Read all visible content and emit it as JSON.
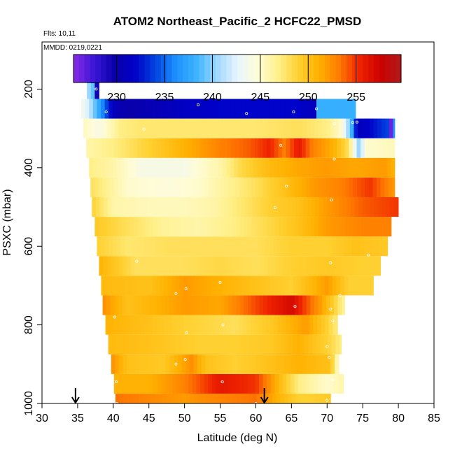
{
  "chart_data": {
    "type": "heatmap",
    "title": "ATOM2 Northeast_Pacific_2 HCFC22_PMSD",
    "flights_label": "Flts: 10,11",
    "dates_label": "MMDD: 0219,0221",
    "xlabel": "Latitude (deg N)",
    "ylabel": "PSXC (mbar)",
    "xlim": [
      30,
      85
    ],
    "ylim": [
      1000,
      80
    ],
    "y_reversed": true,
    "xticks": [
      "30",
      "35",
      "40",
      "45",
      "50",
      "55",
      "60",
      "65",
      "70",
      "75",
      "80",
      "85"
    ],
    "yticks": [
      "200",
      "400",
      "600",
      "800",
      "1000"
    ],
    "colorbar": {
      "min": 225.5,
      "max": 259.7,
      "ticks": [
        "230",
        "235",
        "240",
        "245",
        "250",
        "255"
      ],
      "colors": [
        "#8a2be2",
        "#3b16d8",
        "#0a00a8",
        "#0000c8",
        "#0044e0",
        "#1e90ff",
        "#3cb4ff",
        "#9fd8ff",
        "#e6f5ff",
        "#fffcd6",
        "#fff08a",
        "#ffd030",
        "#ffb000",
        "#ff7a00",
        "#ee2200",
        "#cc0000",
        "#b01a1a"
      ]
    },
    "arrows": [
      34.7,
      61.2
    ],
    "rows": [
      {
        "p": 1000,
        "x0": 40.3,
        "x1": 70.5,
        "stops": [
          [
            40.3,
            253.5
          ],
          [
            50,
            252
          ],
          [
            52,
            252.5
          ],
          [
            60,
            253.5
          ],
          [
            63,
            251
          ],
          [
            66,
            249
          ],
          [
            68,
            249
          ],
          [
            70.5,
            249.5
          ]
        ]
      },
      {
        "p": 950,
        "x0": 40.1,
        "x1": 72.3,
        "stops": [
          [
            40.1,
            251
          ],
          [
            45,
            251
          ],
          [
            50,
            253
          ],
          [
            55,
            256
          ],
          [
            60,
            255
          ],
          [
            63,
            251
          ],
          [
            66,
            247
          ],
          [
            70,
            245
          ],
          [
            72.3,
            246
          ]
        ]
      },
      {
        "p": 900,
        "x0": 39.7,
        "x1": 71.7,
        "stops": [
          [
            39.7,
            252.5
          ],
          [
            42,
            250
          ],
          [
            47,
            249.5
          ],
          [
            51,
            252.5
          ],
          [
            53,
            250
          ],
          [
            57,
            249
          ],
          [
            62,
            250
          ],
          [
            66,
            251
          ],
          [
            70.5,
            250
          ],
          [
            71.3,
            246
          ],
          [
            71.7,
            245
          ]
        ]
      },
      {
        "p": 850,
        "x0": 39.3,
        "x1": 72.0,
        "stops": [
          [
            39.3,
            250.5
          ],
          [
            45,
            250
          ],
          [
            52,
            249
          ],
          [
            57,
            249
          ],
          [
            62,
            249.5
          ],
          [
            66,
            251
          ],
          [
            70,
            249
          ],
          [
            72,
            247
          ]
        ]
      },
      {
        "p": 800,
        "x0": 38.9,
        "x1": 71.5,
        "stops": [
          [
            38.9,
            251
          ],
          [
            45,
            250
          ],
          [
            50,
            249
          ],
          [
            54,
            248.5
          ],
          [
            57,
            248
          ],
          [
            62,
            249.5
          ],
          [
            67,
            252
          ],
          [
            70,
            249
          ],
          [
            71.5,
            247
          ]
        ]
      },
      {
        "p": 750,
        "x0": 38.5,
        "x1": 72.5,
        "stops": [
          [
            38.5,
            252.5
          ],
          [
            42,
            250
          ],
          [
            50,
            252
          ],
          [
            55,
            251.5
          ],
          [
            60,
            254.5
          ],
          [
            65,
            257
          ],
          [
            69,
            252
          ],
          [
            71,
            249
          ],
          [
            72.5,
            246
          ]
        ]
      },
      {
        "p": 700,
        "x0": 38.3,
        "x1": 76.5,
        "stops": [
          [
            38.3,
            250.5
          ],
          [
            45,
            250
          ],
          [
            50,
            252
          ],
          [
            55,
            251
          ],
          [
            60,
            250
          ],
          [
            65,
            249
          ],
          [
            70,
            252
          ],
          [
            73,
            249
          ],
          [
            76.5,
            249
          ]
        ]
      },
      {
        "p": 650,
        "x0": 38.0,
        "x1": 77.5,
        "stops": [
          [
            38.0,
            251
          ],
          [
            43,
            248
          ],
          [
            50,
            248
          ],
          [
            55,
            248.5
          ],
          [
            60,
            248
          ],
          [
            65,
            249
          ],
          [
            70,
            249.5
          ],
          [
            75,
            249
          ],
          [
            77.5,
            249
          ]
        ]
      },
      {
        "p": 600,
        "x0": 37.7,
        "x1": 78.5,
        "stops": [
          [
            37.7,
            249
          ],
          [
            42,
            247.5
          ],
          [
            48,
            248
          ],
          [
            55,
            248
          ],
          [
            60,
            248
          ],
          [
            65,
            249
          ],
          [
            70,
            249
          ],
          [
            74,
            250
          ],
          [
            78.5,
            249.5
          ]
        ]
      },
      {
        "p": 550,
        "x0": 37.4,
        "x1": 79.0,
        "stops": [
          [
            37.4,
            249.5
          ],
          [
            42,
            248
          ],
          [
            47,
            246.5
          ],
          [
            52,
            246
          ],
          [
            57,
            247
          ],
          [
            62,
            248.5
          ],
          [
            66,
            250
          ],
          [
            70,
            252
          ],
          [
            75,
            253
          ],
          [
            79,
            253
          ]
        ]
      },
      {
        "p": 500,
        "x0": 37.0,
        "x1": 80.0,
        "stops": [
          [
            37.0,
            249
          ],
          [
            40,
            246
          ],
          [
            45,
            245.5
          ],
          [
            50,
            245.5
          ],
          [
            54,
            246
          ],
          [
            58,
            247.5
          ],
          [
            62,
            249
          ],
          [
            66,
            250
          ],
          [
            70,
            252
          ],
          [
            75,
            254
          ],
          [
            80,
            255
          ]
        ]
      },
      {
        "p": 450,
        "x0": 36.8,
        "x1": 79.5,
        "stops": [
          [
            36.8,
            248
          ],
          [
            42,
            245
          ],
          [
            48,
            244.5
          ],
          [
            52,
            245
          ],
          [
            56,
            246.5
          ],
          [
            60,
            248
          ],
          [
            64,
            250
          ],
          [
            68,
            252
          ],
          [
            72,
            253
          ],
          [
            76,
            255
          ],
          [
            79.5,
            252
          ]
        ]
      },
      {
        "p": 400,
        "x0": 36.6,
        "x1": 79.5,
        "stops": [
          [
            36.6,
            247
          ],
          [
            40,
            246
          ],
          [
            44,
            244
          ],
          [
            50,
            244
          ],
          [
            55,
            246
          ],
          [
            58,
            248.5
          ],
          [
            62,
            250.5
          ],
          [
            66,
            251.5
          ],
          [
            70,
            252
          ],
          [
            74,
            251.5
          ],
          [
            78,
            252
          ],
          [
            79.5,
            251
          ]
        ]
      },
      {
        "p": 350,
        "x0": 36.2,
        "x1": 79.5,
        "stops": [
          [
            36.2,
            246
          ],
          [
            40,
            247
          ],
          [
            45,
            249
          ],
          [
            50,
            251
          ],
          [
            55,
            253
          ],
          [
            59,
            254
          ],
          [
            62,
            255.5
          ],
          [
            64,
            253
          ],
          [
            66,
            256
          ],
          [
            68,
            253
          ],
          [
            71,
            251
          ],
          [
            73,
            248
          ],
          [
            74.5,
            240
          ],
          [
            75.5,
            245
          ],
          [
            79.5,
            245.5
          ]
        ]
      },
      {
        "p": 300,
        "x0": 35.8,
        "x1": 79.5,
        "stops": [
          [
            35.8,
            245.5
          ],
          [
            38,
            244
          ],
          [
            41,
            247
          ],
          [
            44,
            247.5
          ],
          [
            50,
            247.5
          ],
          [
            60,
            247.5
          ],
          [
            66,
            248
          ],
          [
            70,
            247
          ],
          [
            72,
            245
          ],
          [
            73.5,
            238
          ],
          [
            74.2,
            231
          ],
          [
            76,
            232
          ],
          [
            78.5,
            234
          ],
          [
            79,
            226
          ],
          [
            79.5,
            240
          ]
        ]
      },
      {
        "p": 250,
        "x0": 35.5,
        "x1": 74.0,
        "stops": [
          [
            35.5,
            244
          ],
          [
            36.5,
            242
          ],
          [
            38.5,
            236
          ],
          [
            40,
            231
          ],
          [
            42,
            230
          ],
          [
            50,
            231.5
          ],
          [
            55,
            232
          ],
          [
            60,
            232
          ],
          [
            66,
            232
          ],
          [
            68.2,
            231
          ],
          [
            68.7,
            238
          ],
          [
            74,
            238
          ]
        ]
      },
      {
        "p": 200,
        "x0": 36.3,
        "x1": 38.0,
        "stops": [
          [
            36.3,
            241
          ],
          [
            37.2,
            239
          ],
          [
            37.6,
            229
          ],
          [
            38.0,
            231
          ]
        ]
      },
      {
        "p": 170,
        "x0": 36.3,
        "x1": 38.0,
        "stops": [
          [
            36.3,
            240
          ],
          [
            37.0,
            236
          ],
          [
            37.6,
            231
          ],
          [
            38.0,
            232
          ]
        ]
      }
    ],
    "points": [
      [
        40.5,
        1000
      ],
      [
        60.0,
        1000
      ],
      [
        70.0,
        992
      ],
      [
        40.4,
        945
      ],
      [
        55.3,
        945
      ],
      [
        70.8,
        940
      ],
      [
        48.8,
        900
      ],
      [
        50.1,
        888
      ],
      [
        70.3,
        883
      ],
      [
        70.0,
        855
      ],
      [
        50.3,
        820
      ],
      [
        55.4,
        800
      ],
      [
        70.8,
        790
      ],
      [
        40.2,
        780
      ],
      [
        65.5,
        753
      ],
      [
        70.5,
        760
      ],
      [
        48.8,
        720
      ],
      [
        50.2,
        708
      ],
      [
        55.0,
        692
      ],
      [
        71.8,
        725
      ],
      [
        43.3,
        638
      ],
      [
        70.5,
        642
      ],
      [
        75.8,
        622
      ],
      [
        62.7,
        502
      ],
      [
        70.6,
        482
      ],
      [
        80.0,
        472
      ],
      [
        64.3,
        447
      ],
      [
        71.0,
        378
      ],
      [
        63.5,
        343
      ],
      [
        73.6,
        285
      ],
      [
        74.2,
        284
      ],
      [
        44.3,
        302
      ],
      [
        71.0,
        288
      ],
      [
        39.0,
        258
      ],
      [
        58.7,
        262
      ],
      [
        65.3,
        258
      ],
      [
        68.5,
        250
      ],
      [
        51.9,
        240
      ],
      [
        37.6,
        200
      ],
      [
        38.8,
        212
      ]
    ]
  }
}
